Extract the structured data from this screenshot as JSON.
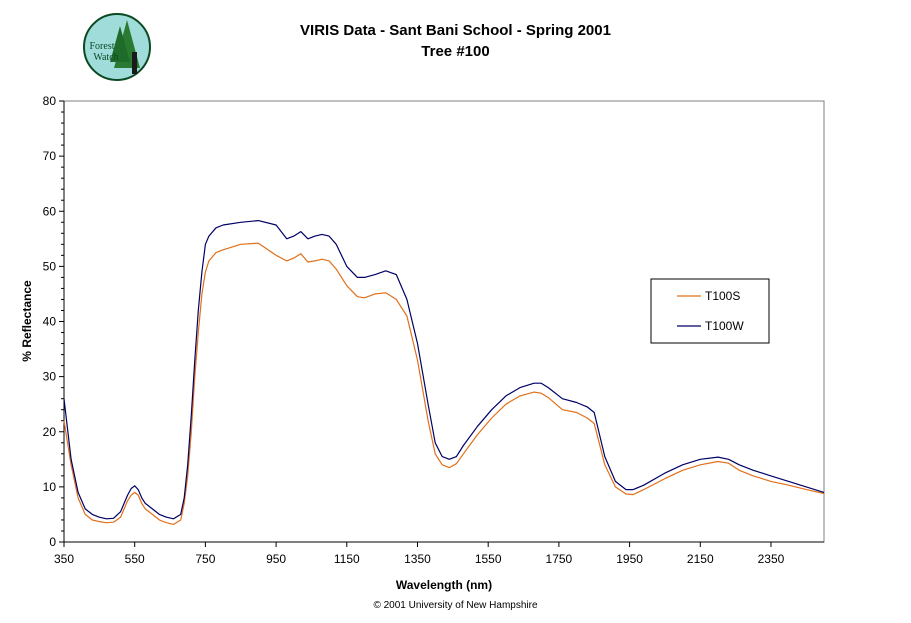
{
  "header": {
    "title_line1": "VIRIS Data - Sant Bani School - Spring 2001",
    "title_line2": "Tree #100"
  },
  "logo": {
    "line1": "Forest",
    "line2": "Watch",
    "colors": {
      "ring": "#7ecfd0",
      "tree": "#1f6b2a",
      "text": "#0a4a23"
    }
  },
  "footer": "© 2001 University of New Hampshire",
  "chart_data": {
    "type": "line",
    "title": "VIRIS Data - Sant Bani School - Spring 2001",
    "subtitle": "Tree #100",
    "xlabel": "Wavelength (nm)",
    "ylabel": "% Reflectance",
    "xlim": [
      350,
      2500
    ],
    "ylim": [
      0,
      80
    ],
    "xticks": [
      350,
      550,
      750,
      950,
      1150,
      1350,
      1550,
      1750,
      1950,
      2150,
      2350
    ],
    "yticks": [
      0,
      10,
      20,
      30,
      40,
      50,
      60,
      70,
      80
    ],
    "grid": false,
    "legend_position": "right",
    "series": [
      {
        "name": "T100S",
        "color": "#e0701a",
        "x": [
          350,
          370,
          390,
          410,
          430,
          450,
          470,
          490,
          510,
          520,
          530,
          540,
          550,
          560,
          570,
          580,
          600,
          620,
          640,
          660,
          680,
          690,
          700,
          710,
          720,
          730,
          740,
          750,
          760,
          780,
          800,
          850,
          900,
          950,
          980,
          1000,
          1020,
          1040,
          1060,
          1080,
          1100,
          1120,
          1150,
          1180,
          1200,
          1230,
          1260,
          1290,
          1320,
          1350,
          1380,
          1400,
          1420,
          1440,
          1460,
          1480,
          1520,
          1560,
          1600,
          1640,
          1680,
          1700,
          1720,
          1760,
          1800,
          1830,
          1850,
          1880,
          1910,
          1940,
          1960,
          1990,
          2050,
          2100,
          2150,
          2200,
          2230,
          2260,
          2300,
          2350,
          2400,
          2450,
          2500
        ],
        "values": [
          22,
          14,
          8,
          5,
          4,
          3.7,
          3.5,
          3.6,
          4.5,
          6,
          7.5,
          8.5,
          9,
          8.5,
          7,
          6,
          5,
          4,
          3.5,
          3.2,
          4,
          7,
          12,
          20,
          30,
          38,
          45,
          49,
          51,
          52.5,
          53,
          54,
          54.2,
          52,
          51,
          51.5,
          52.3,
          50.8,
          51,
          51.3,
          51,
          49.5,
          46.5,
          44.5,
          44.3,
          45,
          45.2,
          44,
          41,
          33,
          22,
          16,
          14,
          13.5,
          14.2,
          16,
          19.5,
          22.5,
          25,
          26.5,
          27.2,
          27,
          26.2,
          24,
          23.5,
          22.5,
          21.5,
          14,
          10,
          8.7,
          8.6,
          9.5,
          11.5,
          13,
          14,
          14.6,
          14.3,
          13,
          12,
          11,
          10.3,
          9.5,
          8.8
        ]
      },
      {
        "name": "T100W",
        "color": "#000066",
        "x": [
          350,
          370,
          390,
          410,
          430,
          450,
          470,
          490,
          510,
          520,
          530,
          540,
          550,
          560,
          570,
          580,
          600,
          620,
          640,
          660,
          680,
          690,
          700,
          710,
          720,
          730,
          740,
          750,
          760,
          780,
          800,
          850,
          900,
          950,
          980,
          1000,
          1020,
          1040,
          1060,
          1080,
          1100,
          1120,
          1150,
          1180,
          1200,
          1230,
          1260,
          1290,
          1320,
          1350,
          1380,
          1400,
          1420,
          1440,
          1460,
          1480,
          1520,
          1560,
          1600,
          1640,
          1680,
          1700,
          1720,
          1760,
          1800,
          1830,
          1850,
          1880,
          1910,
          1940,
          1960,
          1990,
          2050,
          2100,
          2150,
          2200,
          2230,
          2260,
          2300,
          2350,
          2400,
          2450,
          2500
        ],
        "values": [
          26,
          15,
          9,
          6,
          5,
          4.5,
          4.2,
          4.3,
          5.5,
          7,
          8.5,
          9.7,
          10.2,
          9.5,
          8,
          7,
          6,
          5,
          4.5,
          4.2,
          5,
          8,
          14,
          23,
          33,
          42,
          49,
          54,
          55.5,
          57,
          57.5,
          58,
          58.3,
          57.5,
          55,
          55.5,
          56.3,
          55,
          55.5,
          55.8,
          55.5,
          54,
          50,
          48,
          48,
          48.5,
          49.2,
          48.5,
          44,
          36,
          25,
          18,
          15.5,
          15,
          15.5,
          17.5,
          21,
          24,
          26.5,
          28,
          28.8,
          28.8,
          28,
          26,
          25.3,
          24.5,
          23.5,
          15.5,
          11,
          9.5,
          9.5,
          10.3,
          12.5,
          14,
          15,
          15.4,
          15,
          14,
          13,
          12,
          11,
          10,
          9
        ]
      }
    ]
  }
}
